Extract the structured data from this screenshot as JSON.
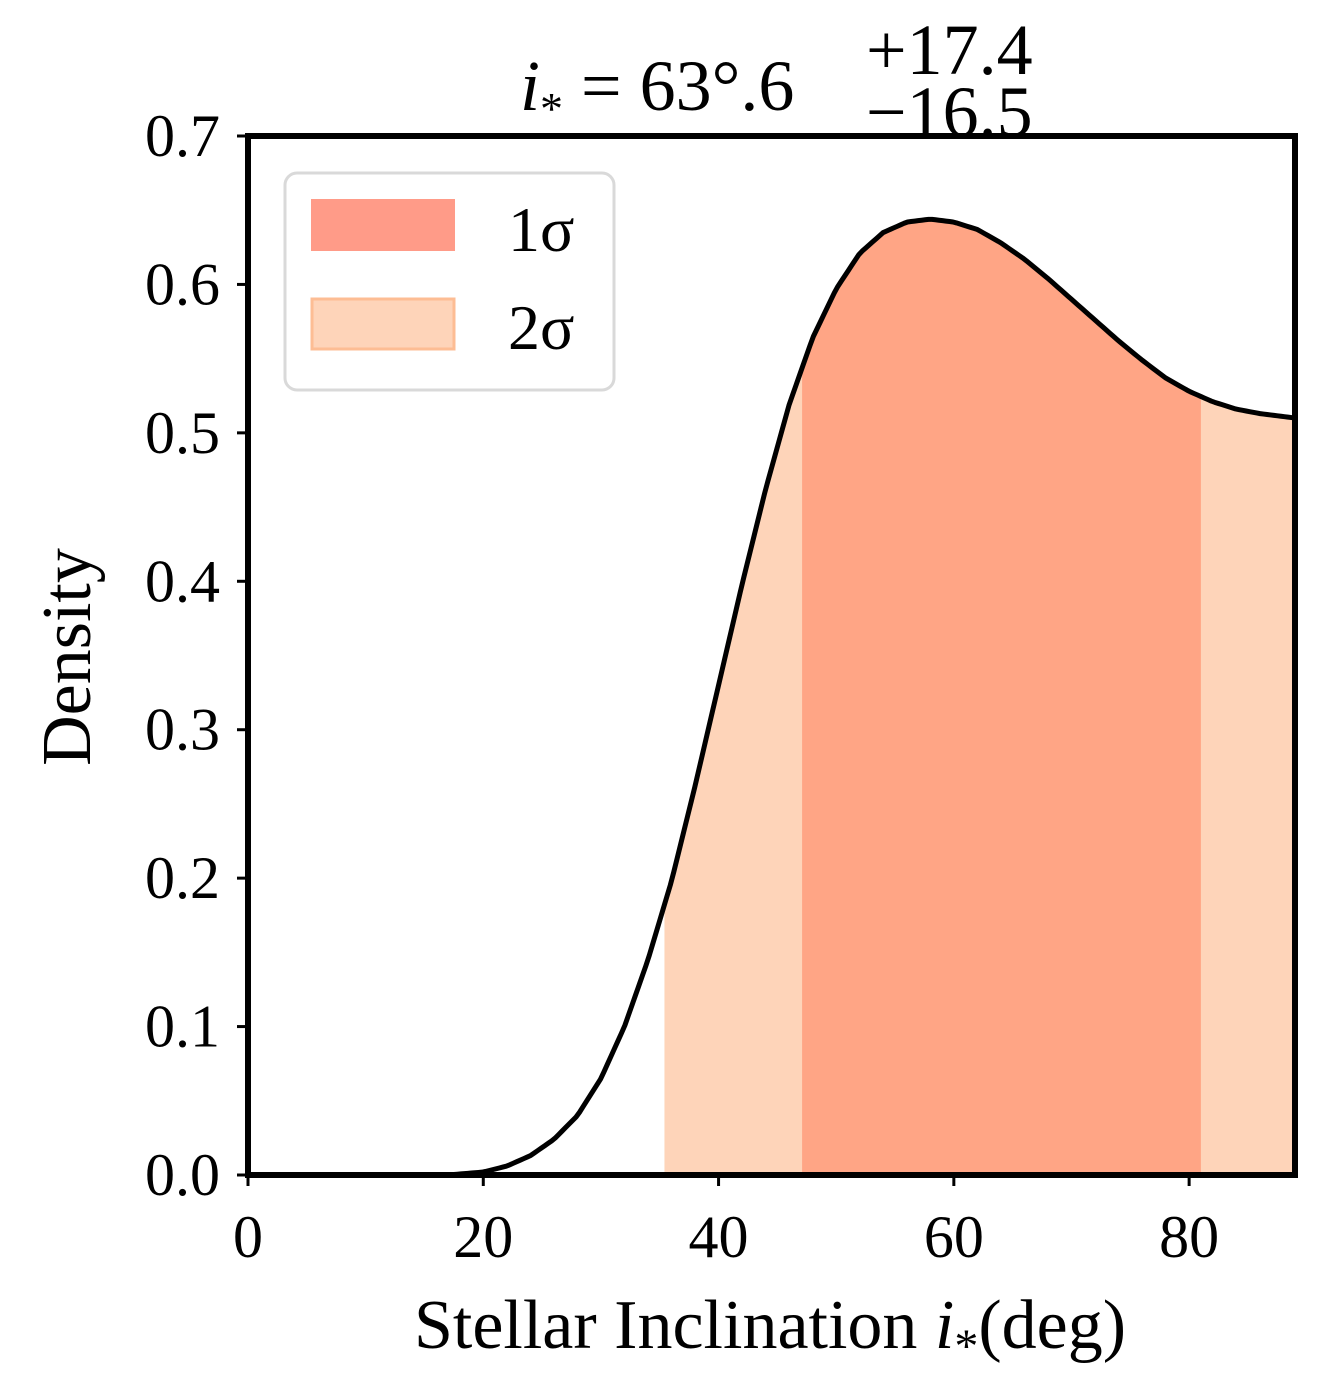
{
  "chart_data": {
    "type": "area",
    "title": {
      "symbol": "i",
      "subscript": "*",
      "equals": "=",
      "value": "63°.6",
      "upper_err": "+17.4",
      "lower_err": "−16.5"
    },
    "xlabel": {
      "text": "Stellar Inclination ",
      "symbol": "i",
      "subscript": "*",
      "unit": "(deg)"
    },
    "ylabel": "Density",
    "xlim": [
      0,
      89
    ],
    "ylim": [
      0,
      0.7
    ],
    "xticks": [
      0,
      20,
      40,
      60,
      80
    ],
    "xtick_labels": [
      "0",
      "20",
      "40",
      "60",
      "80"
    ],
    "yticks": [
      0.0,
      0.1,
      0.2,
      0.3,
      0.4,
      0.5,
      0.6,
      0.7
    ],
    "ytick_labels": [
      "0.0",
      "0.1",
      "0.2",
      "0.3",
      "0.4",
      "0.5",
      "0.6",
      "0.7"
    ],
    "density_curve": {
      "x": [
        0,
        10,
        17,
        20,
        22,
        24,
        26,
        28,
        30,
        32,
        34,
        36,
        38,
        40,
        42,
        44,
        46,
        48,
        50,
        52,
        54,
        56,
        58,
        59,
        60,
        62,
        64,
        66,
        68,
        70,
        72,
        74,
        76,
        78,
        80,
        82,
        84,
        86,
        88,
        89
      ],
      "y": [
        0,
        0,
        0.0,
        0.002,
        0.006,
        0.013,
        0.024,
        0.04,
        0.065,
        0.1,
        0.145,
        0.198,
        0.262,
        0.33,
        0.398,
        0.462,
        0.519,
        0.564,
        0.597,
        0.621,
        0.635,
        0.642,
        0.644,
        0.643,
        0.642,
        0.637,
        0.628,
        0.617,
        0.604,
        0.59,
        0.576,
        0.562,
        0.549,
        0.537,
        0.528,
        0.521,
        0.516,
        0.513,
        0.511,
        0.51
      ]
    },
    "intervals": [
      {
        "name": "1σ",
        "x_min": 47.1,
        "x_max": 81.0,
        "color": "#ffa585"
      },
      {
        "name": "2σ",
        "x_min": 35.4,
        "x_max": 89.0,
        "color": "#fed4b9"
      }
    ],
    "legend": {
      "location": "upper left",
      "entries": [
        {
          "label": "1σ",
          "color": "#ff9b88"
        },
        {
          "label": "2σ",
          "color": "#fed4b9",
          "edge": "#fdbd94"
        }
      ]
    }
  }
}
